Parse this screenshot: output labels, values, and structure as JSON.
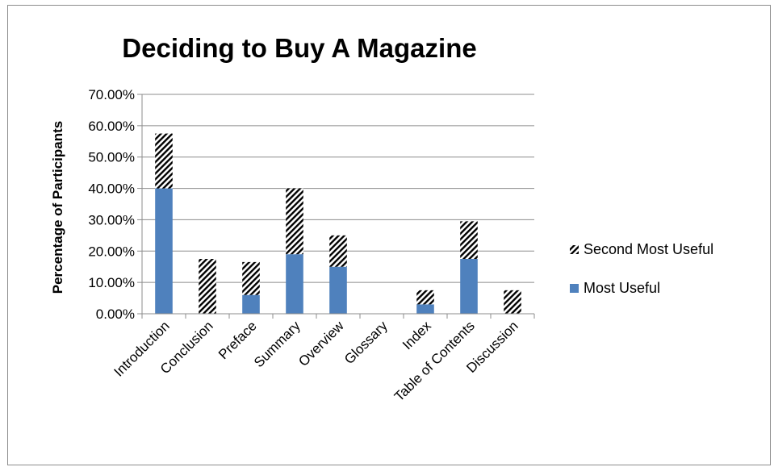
{
  "chart_data": {
    "type": "bar",
    "stacked": true,
    "title": "Deciding to Buy A Magazine",
    "ylabel": "Percentage of Participants",
    "xlabel": "",
    "ylim": [
      0,
      0.7
    ],
    "y_ticks": [
      "0.00%",
      "10.00%",
      "20.00%",
      "30.00%",
      "40.00%",
      "50.00%",
      "60.00%",
      "70.00%"
    ],
    "grid": true,
    "legend_position": "right",
    "categories": [
      "Introduction",
      "Conclusion",
      "Preface",
      "Summary",
      "Overview",
      "Glossary",
      "Index",
      "Table of Contents",
      "Discussion"
    ],
    "series": [
      {
        "name": "Most Useful",
        "color": "#4f81bd",
        "fill": "solid",
        "values": [
          0.4,
          0.0,
          0.06,
          0.19,
          0.15,
          0.0,
          0.03,
          0.175,
          0.0
        ]
      },
      {
        "name": "Second Most Useful",
        "color": "#000000",
        "fill": "hatched",
        "values": [
          0.175,
          0.175,
          0.105,
          0.21,
          0.1,
          0.0,
          0.045,
          0.12,
          0.075
        ]
      }
    ]
  }
}
